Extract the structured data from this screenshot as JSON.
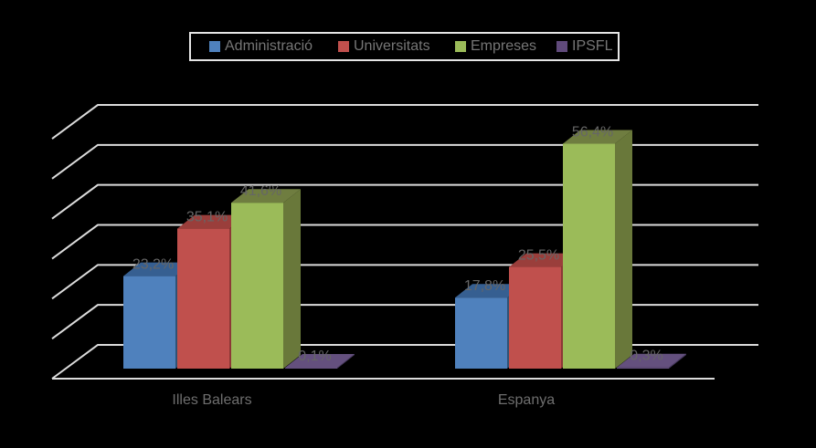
{
  "background_color": "#000000",
  "gridline_color": "#DCDCDC",
  "legend": {
    "border_color": "#E6E6E6",
    "items": [
      {
        "label": "Administració",
        "color": "#4F81BD"
      },
      {
        "label": "Universitats",
        "color": "#C0504D"
      },
      {
        "label": "Empreses",
        "color": "#9BBB59"
      },
      {
        "label": "IPSFL",
        "color": "#604A7B"
      }
    ]
  },
  "chart_data": {
    "type": "bar",
    "style": "3d-clustered-column",
    "title": "",
    "xlabel": "",
    "ylabel": "",
    "categories": [
      "Illes Balears",
      "Espanya"
    ],
    "series": [
      {
        "name": "Administració",
        "values": [
          23.2,
          17.8
        ],
        "labels": [
          "23,2%",
          "17,8%"
        ],
        "color": "#4F81BD",
        "color_top": "#365F91",
        "color_side": "#2E5276"
      },
      {
        "name": "Universitats",
        "values": [
          35.1,
          25.5
        ],
        "labels": [
          "35,1%",
          "25,5%"
        ],
        "color": "#C0504D",
        "color_top": "#9A3E3B",
        "color_side": "#8C3836"
      },
      {
        "name": "Empreses",
        "values": [
          41.6,
          56.4
        ],
        "labels": [
          "41,6%",
          "56,4%"
        ],
        "color": "#9BBB59",
        "color_top": "#6F7D40",
        "color_side": "#69783A"
      },
      {
        "name": "IPSFL",
        "values": [
          0.1,
          0.3
        ],
        "labels": [
          "0,1%",
          "0,3%"
        ],
        "color": "#64507E",
        "color_top": "#64507E",
        "color_side": "#4A3C63"
      }
    ],
    "ylim": [
      0,
      60
    ],
    "gridline_step_pct": 10,
    "grid": "horizontal back-wall gridlines, no y-axis tick labels",
    "legend_position": "top",
    "data_label_format": "percent-comma-decimal",
    "data_label_color": "#666666"
  }
}
